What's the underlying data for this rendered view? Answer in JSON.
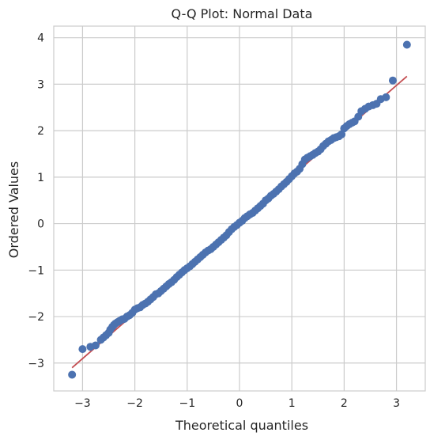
{
  "chart_data": {
    "type": "scatter",
    "title": "Q-Q Plot: Normal Data",
    "xlabel": "Theoretical quantiles",
    "ylabel": "Ordered Values",
    "xlim": [
      -3.55,
      3.55
    ],
    "ylim": [
      -3.6,
      4.25
    ],
    "xticks": [
      -3,
      -2,
      -1,
      0,
      1,
      2,
      3
    ],
    "yticks": [
      -3,
      -2,
      -1,
      0,
      1,
      2,
      3,
      4
    ],
    "xtick_labels": [
      "−3",
      "−2",
      "−1",
      "0",
      "1",
      "2",
      "3"
    ],
    "ytick_labels": [
      "−3",
      "−2",
      "−1",
      "0",
      "1",
      "2",
      "3",
      "4"
    ],
    "grid": true,
    "fit_line": {
      "x": [
        -3.2,
        3.2
      ],
      "y": [
        -3.1,
        3.17
      ],
      "color": "#c44e52"
    },
    "point_color": "#4c72b0",
    "points": {
      "x": [
        -3.2,
        -3.0,
        -2.85,
        -2.75,
        -2.65,
        -2.6,
        -2.55,
        -2.5,
        -2.47,
        -2.43,
        -2.4,
        -2.37,
        -2.33,
        -2.3,
        -2.27,
        -2.24,
        -2.2,
        -2.15,
        -2.1,
        -2.05,
        -2.0,
        -1.95,
        -1.9,
        -1.85,
        -1.8,
        -1.75,
        -1.7,
        -1.65,
        -1.6,
        -1.55,
        -1.5,
        -1.45,
        -1.4,
        -1.35,
        -1.3,
        -1.25,
        -1.2,
        -1.15,
        -1.1,
        -1.05,
        -1.0,
        -0.95,
        -0.9,
        -0.85,
        -0.8,
        -0.75,
        -0.7,
        -0.65,
        -0.6,
        -0.55,
        -0.5,
        -0.45,
        -0.4,
        -0.35,
        -0.3,
        -0.25,
        -0.2,
        -0.15,
        -0.1,
        -0.05,
        0.0,
        0.05,
        0.1,
        0.15,
        0.2,
        0.25,
        0.3,
        0.35,
        0.4,
        0.45,
        0.5,
        0.55,
        0.6,
        0.65,
        0.7,
        0.75,
        0.8,
        0.85,
        0.9,
        0.95,
        1.0,
        1.05,
        1.1,
        1.15,
        1.2,
        1.25,
        1.3,
        1.35,
        1.4,
        1.45,
        1.5,
        1.55,
        1.6,
        1.65,
        1.7,
        1.75,
        1.8,
        1.85,
        1.9,
        1.95,
        2.0,
        2.05,
        2.1,
        2.15,
        2.2,
        2.27,
        2.33,
        2.4,
        2.47,
        2.55,
        2.62,
        2.7,
        2.8,
        2.93,
        3.2
      ],
      "y": [
        -3.25,
        -2.7,
        -2.65,
        -2.62,
        -2.5,
        -2.45,
        -2.4,
        -2.35,
        -2.28,
        -2.22,
        -2.18,
        -2.15,
        -2.12,
        -2.1,
        -2.08,
        -2.06,
        -2.05,
        -2.0,
        -1.97,
        -1.92,
        -1.85,
        -1.82,
        -1.8,
        -1.75,
        -1.72,
        -1.68,
        -1.63,
        -1.58,
        -1.52,
        -1.5,
        -1.45,
        -1.4,
        -1.35,
        -1.3,
        -1.26,
        -1.21,
        -1.15,
        -1.1,
        -1.05,
        -1.0,
        -0.96,
        -0.92,
        -0.87,
        -0.82,
        -0.77,
        -0.72,
        -0.67,
        -0.62,
        -0.58,
        -0.55,
        -0.5,
        -0.45,
        -0.4,
        -0.35,
        -0.3,
        -0.25,
        -0.18,
        -0.12,
        -0.07,
        -0.03,
        0.02,
        0.06,
        0.12,
        0.16,
        0.2,
        0.23,
        0.28,
        0.33,
        0.38,
        0.43,
        0.5,
        0.54,
        0.6,
        0.64,
        0.69,
        0.74,
        0.8,
        0.85,
        0.9,
        0.96,
        1.02,
        1.08,
        1.12,
        1.18,
        1.28,
        1.38,
        1.42,
        1.45,
        1.48,
        1.52,
        1.55,
        1.6,
        1.67,
        1.72,
        1.77,
        1.8,
        1.84,
        1.86,
        1.88,
        1.92,
        2.05,
        2.1,
        2.14,
        2.17,
        2.2,
        2.3,
        2.42,
        2.47,
        2.52,
        2.55,
        2.58,
        2.68,
        2.72,
        3.08,
        3.85
      ]
    }
  }
}
